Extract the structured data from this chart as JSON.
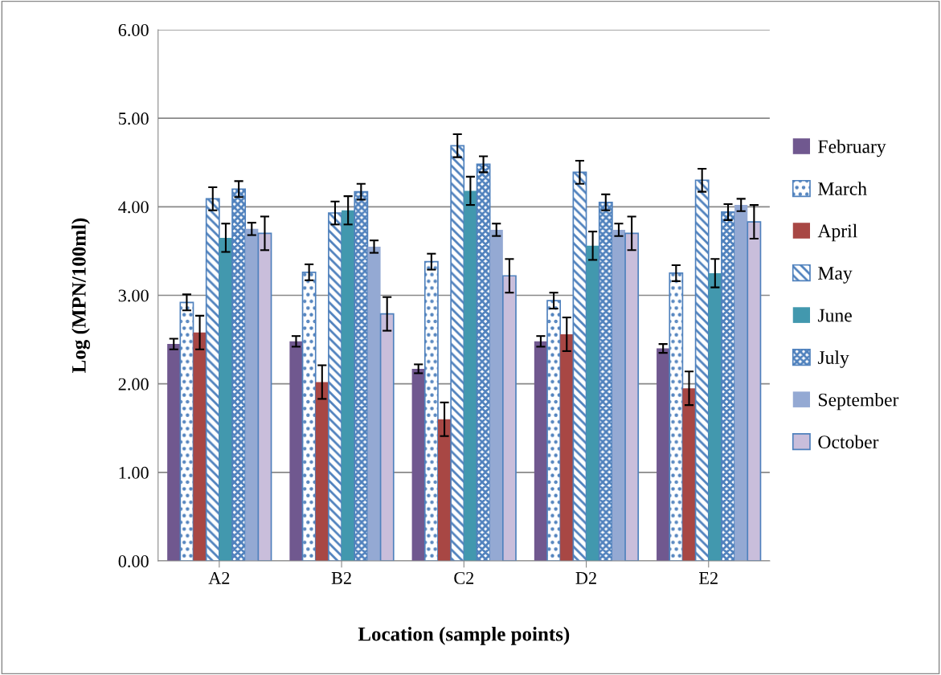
{
  "chart_data": {
    "type": "bar",
    "xlabel": "Location (sample points)",
    "ylabel": "Log (MPN/100ml)",
    "categories": [
      "A2",
      "B2",
      "C2",
      "D2",
      "E2"
    ],
    "series": [
      {
        "name": "February",
        "color": "#70588f",
        "values": [
          2.45,
          2.48,
          2.17,
          2.48,
          2.4
        ],
        "errors": [
          0.06,
          0.06,
          0.05,
          0.06,
          0.05
        ]
      },
      {
        "name": "March",
        "color": "#4f81bd",
        "values": [
          2.92,
          3.26,
          3.38,
          2.94,
          3.25
        ],
        "errors": [
          0.09,
          0.09,
          0.09,
          0.09,
          0.09
        ]
      },
      {
        "name": "April",
        "color": "#a84744",
        "values": [
          2.58,
          2.02,
          1.6,
          2.56,
          1.95
        ],
        "errors": [
          0.19,
          0.19,
          0.19,
          0.19,
          0.19
        ]
      },
      {
        "name": "May",
        "color": "#4f81bd",
        "values": [
          4.09,
          3.93,
          4.69,
          4.39,
          4.3
        ],
        "errors": [
          0.13,
          0.13,
          0.13,
          0.13,
          0.13
        ]
      },
      {
        "name": "June",
        "color": "#4298ae",
        "values": [
          3.65,
          3.96,
          4.18,
          3.56,
          3.25
        ],
        "errors": [
          0.16,
          0.16,
          0.16,
          0.16,
          0.16
        ]
      },
      {
        "name": "July",
        "color": "#4f81bd",
        "values": [
          4.2,
          4.17,
          4.48,
          4.05,
          3.94
        ],
        "errors": [
          0.09,
          0.09,
          0.09,
          0.09,
          0.09
        ]
      },
      {
        "name": "September",
        "color": "#94a9d3",
        "values": [
          3.75,
          3.55,
          3.74,
          3.74,
          4.02
        ],
        "errors": [
          0.07,
          0.07,
          0.07,
          0.07,
          0.07
        ]
      },
      {
        "name": "October",
        "color": "#c9bedb",
        "values": [
          3.7,
          2.79,
          3.22,
          3.7,
          3.83
        ],
        "errors": [
          0.19,
          0.19,
          0.19,
          0.19,
          0.19
        ]
      }
    ],
    "ylim": [
      0,
      6
    ],
    "yticks": [
      {
        "value": 0,
        "label": "0.00"
      },
      {
        "value": 1,
        "label": "1.00"
      },
      {
        "value": 2,
        "label": "2.00"
      },
      {
        "value": 3,
        "label": "3.00"
      },
      {
        "value": 4,
        "label": "4.00"
      },
      {
        "value": 5,
        "label": "5.00"
      },
      {
        "value": 6,
        "label": "6.00"
      }
    ],
    "grid": "y",
    "legend": "right"
  }
}
